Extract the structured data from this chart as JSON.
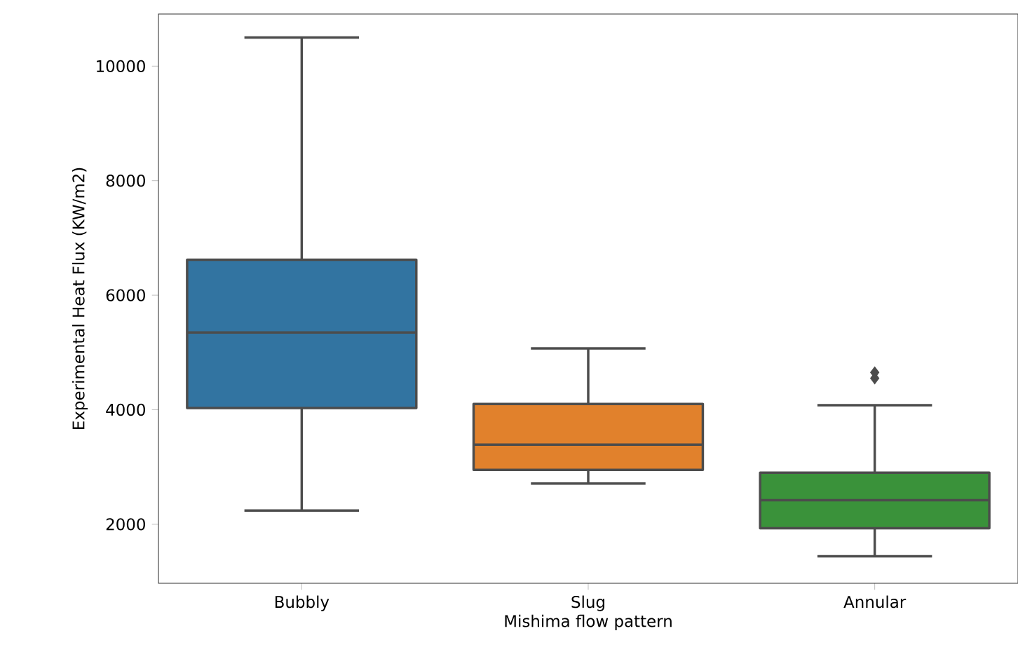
{
  "chart_data": {
    "type": "box",
    "xlabel": "Mishima flow pattern",
    "ylabel": "Experimental Heat Flux (KW/m2)",
    "categories": [
      "Bubbly",
      "Slug",
      "Annular"
    ],
    "colors": [
      "#3274a1",
      "#e1812c",
      "#3a923a"
    ],
    "boxes": [
      {
        "low": 2240,
        "q1": 4030,
        "median": 5350,
        "q3": 6620,
        "high": 10500
      },
      {
        "low": 2710,
        "q1": 2950,
        "median": 3390,
        "q3": 4100,
        "high": 5070
      },
      {
        "low": 1440,
        "q1": 1930,
        "median": 2420,
        "q3": 2900,
        "high": 4080,
        "outliers": [
          4550,
          4650
        ]
      }
    ],
    "ylim": [
      970,
      10910
    ],
    "yticks": [
      2000,
      4000,
      6000,
      8000,
      10000
    ],
    "grid": false,
    "marker": "diamond"
  }
}
